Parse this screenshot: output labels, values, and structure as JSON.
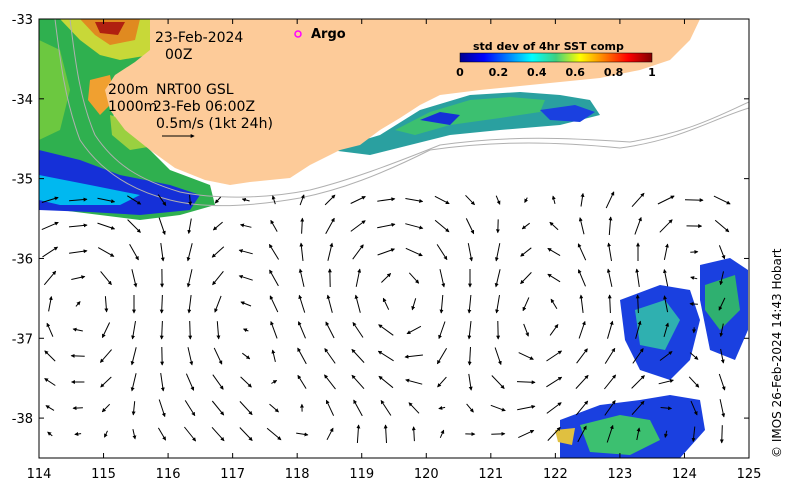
{
  "title_block": {
    "date": "23-Feb-2024",
    "time": "00Z",
    "depth_200": "200m",
    "depth_1000": "1000m",
    "product": "NRT00 GSL",
    "product_time": "23-Feb 06:00Z",
    "scale_label": "0.5m/s (1kt 24h)"
  },
  "argo": {
    "label": "Argo",
    "color": "#ff00ff"
  },
  "legend": {
    "title": "std dev of 4hr SST comp",
    "ticks": [
      "0",
      "0.2",
      "0.4",
      "0.6",
      "0.8",
      "1"
    ]
  },
  "credit": "© IMOS 26-Feb-2024 14:43 Hobart",
  "colors": {
    "land": "#fdcb99",
    "frame": "#000000",
    "bathymetry": "#b0b0b0",
    "arrows": "#000000"
  },
  "chart_data": {
    "type": "map",
    "x_axis": {
      "ticks": [
        "114",
        "115",
        "116",
        "117",
        "118",
        "119",
        "120",
        "121",
        "122",
        "123",
        "124",
        "125"
      ],
      "range": [
        114,
        125
      ]
    },
    "y_axis": {
      "ticks": [
        "-33",
        "-34",
        "-35",
        "-36",
        "-37",
        "-38"
      ],
      "range": [
        -38.5,
        -33
      ]
    },
    "region": "southern Western Australia coast",
    "colorbar_range": [
      0,
      1
    ]
  }
}
